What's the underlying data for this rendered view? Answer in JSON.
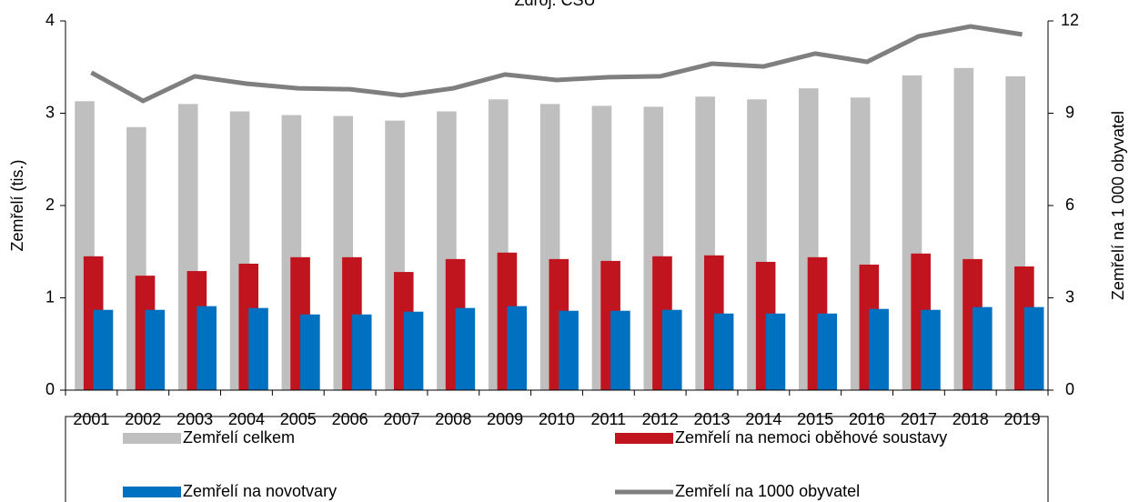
{
  "chart_data": {
    "type": "bar",
    "title": "Zdroj: ČSÚ",
    "y_label": "Zemřelí (tis.)",
    "y2_label": "Zemřelí na 1 000 obyvatel",
    "categories": [
      "2001",
      "2002",
      "2003",
      "2004",
      "2005",
      "2006",
      "2007",
      "2008",
      "2009",
      "2010",
      "2011",
      "2012",
      "2013",
      "2014",
      "2015",
      "2016",
      "2017",
      "2018",
      "2019"
    ],
    "series": [
      {
        "name": "Zemřelí celkem",
        "type": "bar",
        "color": "#bfbfbf",
        "values": [
          3.13,
          2.85,
          3.1,
          3.02,
          2.98,
          2.97,
          2.92,
          3.02,
          3.15,
          3.1,
          3.08,
          3.07,
          3.18,
          3.15,
          3.27,
          3.17,
          3.41,
          3.49,
          3.4
        ]
      },
      {
        "name": "Zemřelí na nemoci oběhové soustavy",
        "type": "bar",
        "color": "#c0141e",
        "values": [
          1.45,
          1.24,
          1.29,
          1.37,
          1.44,
          1.44,
          1.28,
          1.42,
          1.49,
          1.42,
          1.4,
          1.45,
          1.46,
          1.39,
          1.44,
          1.36,
          1.48,
          1.42,
          1.34
        ]
      },
      {
        "name": "Zemřelí na novotvary",
        "type": "bar",
        "color": "#0070c0",
        "values": [
          0.87,
          0.87,
          0.91,
          0.89,
          0.82,
          0.82,
          0.85,
          0.89,
          0.91,
          0.86,
          0.86,
          0.87,
          0.83,
          0.83,
          0.83,
          0.88,
          0.87,
          0.9,
          0.9
        ]
      },
      {
        "name": "Zemřelí na 1000 obyvatel",
        "type": "line",
        "axis": "y2",
        "color": "#7f7f7f",
        "values": [
          10.32,
          9.4,
          10.2,
          9.96,
          9.81,
          9.78,
          9.58,
          9.81,
          10.26,
          10.08,
          10.17,
          10.2,
          10.61,
          10.52,
          10.94,
          10.67,
          11.5,
          11.82,
          11.56
        ]
      }
    ],
    "ylim": [
      0,
      4
    ],
    "yticks": [
      0,
      1,
      2,
      3,
      4
    ],
    "y2lim": [
      0,
      12
    ],
    "y2ticks": [
      0,
      3,
      6,
      9,
      12
    ],
    "grid": false,
    "legend": "bottom"
  }
}
